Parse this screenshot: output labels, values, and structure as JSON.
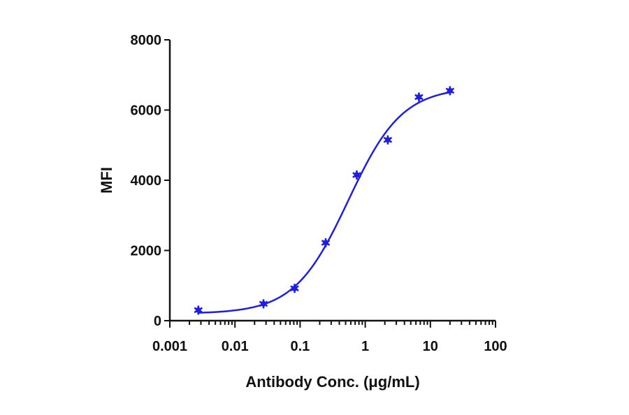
{
  "chart_data": {
    "type": "scatter",
    "title": "",
    "xlabel": "Antibody Conc. (μg/mL)",
    "ylabel": "MFI",
    "xscale": "log",
    "xlim": [
      0.001,
      100
    ],
    "ylim": [
      0,
      8000
    ],
    "x_ticks": [
      0.001,
      0.01,
      0.1,
      1,
      10,
      100
    ],
    "x_tick_labels": [
      "0.001",
      "0.01",
      "0.1",
      "1",
      "10",
      "100"
    ],
    "y_ticks": [
      0,
      2000,
      4000,
      6000,
      8000
    ],
    "y_tick_labels": [
      "0",
      "2000",
      "4000",
      "6000",
      "8000"
    ],
    "grid": false,
    "legend": "none",
    "series": [
      {
        "marker_color": "#1f1fe0",
        "line_color": "#1f1fe0",
        "fit": "4PL sigmoid",
        "x": [
          0.00274,
          0.0274,
          0.0823,
          0.247,
          0.741,
          2.22,
          6.67,
          20
        ],
        "y": [
          300,
          480,
          920,
          2220,
          4150,
          5150,
          6370,
          6550
        ]
      }
    ]
  }
}
